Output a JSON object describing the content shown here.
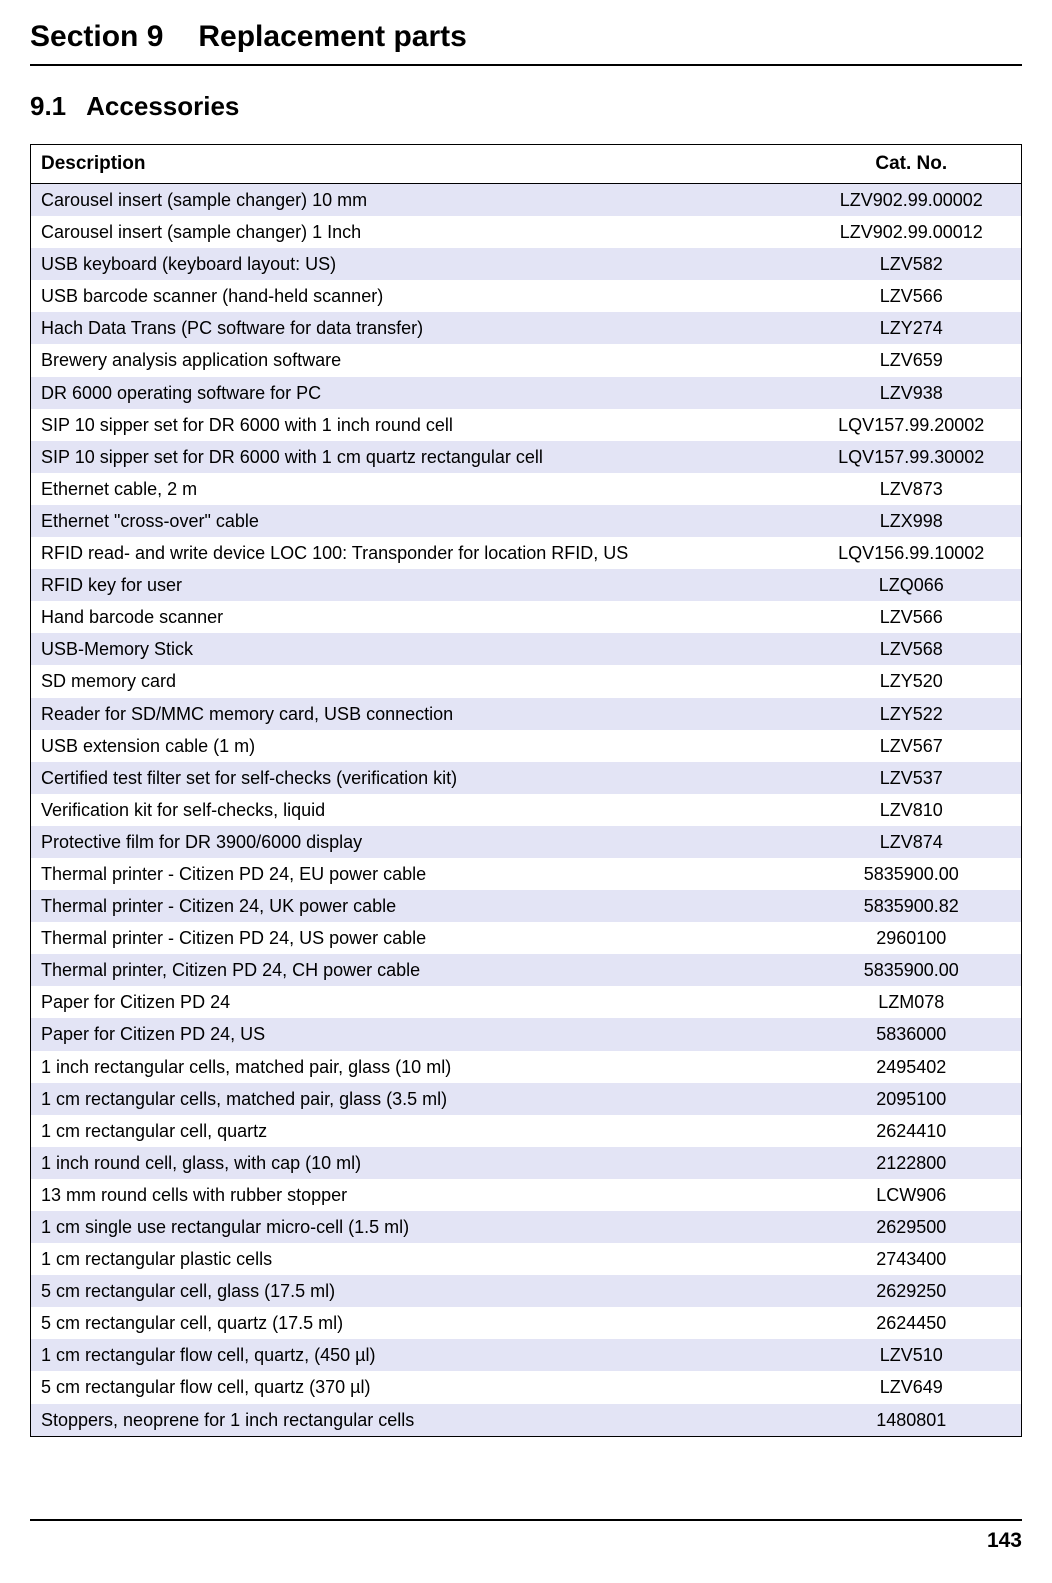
{
  "section": {
    "number": "Section 9",
    "title": "Replacement parts"
  },
  "subsection": {
    "number": "9.1",
    "title": "Accessories"
  },
  "table": {
    "headers": {
      "description": "Description",
      "catno": "Cat. No."
    },
    "row_colors": {
      "odd": "#e3e4f5",
      "even": "#ffffff"
    },
    "rows": [
      {
        "desc": "Carousel insert (sample changer) 10 mm",
        "cat": "LZV902.99.00002"
      },
      {
        "desc": "Carousel insert (sample changer) 1 Inch",
        "cat": "LZV902.99.00012"
      },
      {
        "desc": "USB keyboard (keyboard layout: US)",
        "cat": "LZV582"
      },
      {
        "desc": "USB barcode scanner (hand-held scanner)",
        "cat": "LZV566"
      },
      {
        "desc": "Hach Data Trans (PC software for data transfer)",
        "cat": "LZY274"
      },
      {
        "desc": "Brewery analysis application software",
        "cat": "LZV659"
      },
      {
        "desc": "DR 6000 operating software for PC",
        "cat": "LZV938"
      },
      {
        "desc": "SIP 10 sipper set for DR 6000 with 1 inch round cell",
        "cat": "LQV157.99.20002"
      },
      {
        "desc": "SIP 10 sipper set for DR 6000 with 1 cm quartz rectangular cell",
        "cat": "LQV157.99.30002"
      },
      {
        "desc": "Ethernet cable, 2 m",
        "cat": "LZV873"
      },
      {
        "desc": "Ethernet \"cross-over\" cable",
        "cat": "LZX998"
      },
      {
        "desc": "RFID read- and write device LOC 100: Transponder for location RFID, US",
        "cat": "LQV156.99.10002"
      },
      {
        "desc": "RFID key for user",
        "cat": "LZQ066"
      },
      {
        "desc": "Hand barcode scanner",
        "cat": "LZV566"
      },
      {
        "desc": "USB-Memory Stick",
        "cat": "LZV568"
      },
      {
        "desc": "SD memory card",
        "cat": "LZY520"
      },
      {
        "desc": "Reader for SD/MMC memory card, USB connection",
        "cat": "LZY522"
      },
      {
        "desc": "USB extension cable (1 m)",
        "cat": "LZV567"
      },
      {
        "desc": "Certified test filter set for self-checks (verification kit)",
        "cat": "LZV537"
      },
      {
        "desc": "Verification kit for self-checks, liquid",
        "cat": "LZV810"
      },
      {
        "desc": "Protective film for DR 3900/6000 display",
        "cat": "LZV874"
      },
      {
        "desc": "Thermal printer - Citizen PD 24, EU power cable",
        "cat": "5835900.00"
      },
      {
        "desc": "Thermal printer - Citizen 24, UK power cable",
        "cat": "5835900.82"
      },
      {
        "desc": "Thermal printer - Citizen PD 24, US power cable",
        "cat": "2960100"
      },
      {
        "desc": "Thermal printer, Citizen PD 24, CH power cable",
        "cat": "5835900.00"
      },
      {
        "desc": "Paper for Citizen PD 24",
        "cat": "LZM078"
      },
      {
        "desc": "Paper for Citizen PD 24, US",
        "cat": "5836000"
      },
      {
        "desc": "1 inch rectangular cells, matched pair, glass (10 ml)",
        "cat": "2495402"
      },
      {
        "desc": "1 cm rectangular cells, matched pair, glass (3.5 ml)",
        "cat": "2095100"
      },
      {
        "desc": "1 cm rectangular cell, quartz",
        "cat": "2624410"
      },
      {
        "desc": "1 inch round cell, glass, with cap (10 ml)",
        "cat": "2122800"
      },
      {
        "desc": "13 mm round cells with rubber stopper",
        "cat": "LCW906"
      },
      {
        "desc": "1 cm single use rectangular micro-cell (1.5 ml)",
        "cat": "2629500"
      },
      {
        "desc": "1 cm rectangular plastic cells",
        "cat": "2743400"
      },
      {
        "desc": "5 cm rectangular cell, glass (17.5 ml)",
        "cat": "2629250"
      },
      {
        "desc": "5 cm rectangular cell, quartz (17.5 ml)",
        "cat": "2624450"
      },
      {
        "desc": "1 cm rectangular flow cell, quartz, (450 µl)",
        "cat": "LZV510"
      },
      {
        "desc": "5 cm rectangular flow cell, quartz (370 µl)",
        "cat": "LZV649"
      },
      {
        "desc": "Stoppers, neoprene for 1 inch rectangular cells",
        "cat": "1480801"
      }
    ]
  },
  "page_number": "143"
}
